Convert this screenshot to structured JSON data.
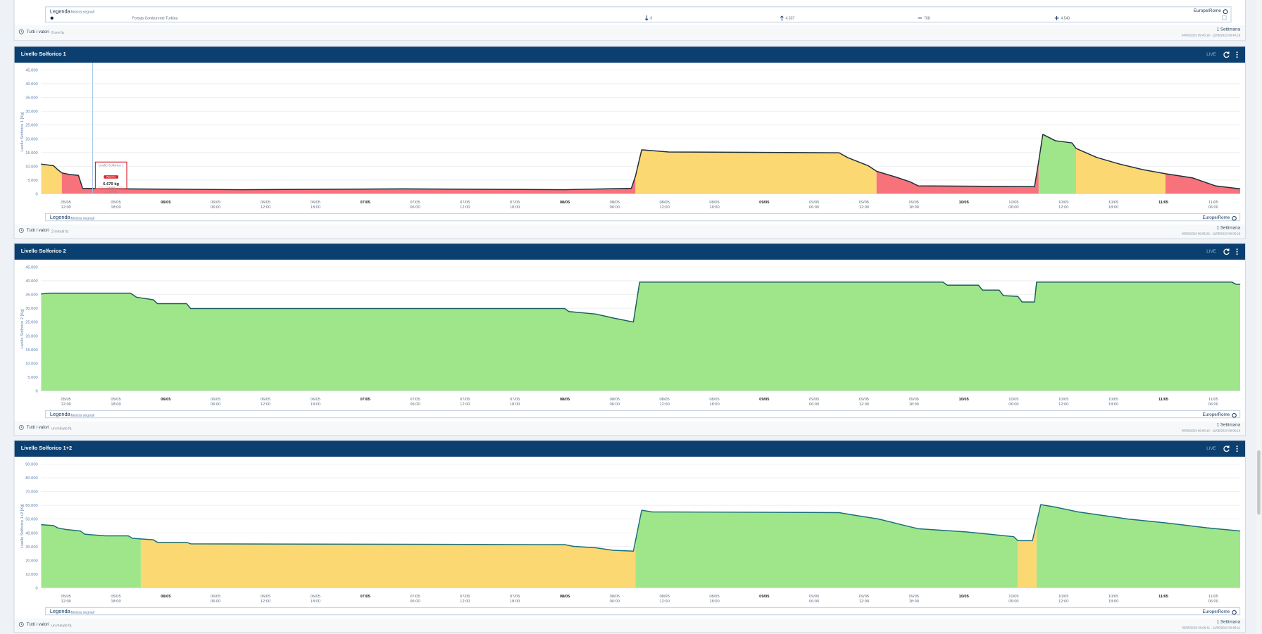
{
  "top_panel": {
    "legend": {
      "title": "Legenda",
      "toggle": "Mostra segnali",
      "timezone": "Europe/Rome"
    },
    "signal": {
      "name": "Portata Comburente Turbina",
      "min": "0",
      "max": "4.507",
      "avg": "708",
      "last": "4.540"
    },
    "footer": {
      "mode": "Tutti i valori",
      "updated": "6 ore fa",
      "range": "1 Settimana",
      "period": "04/05/2023 09:40:18 - 11/05/2023 09:40:18"
    }
  },
  "panels": [
    {
      "title": "Livello Solforico 1",
      "status": "LIVE",
      "legend": {
        "title": "Legenda",
        "toggle": "Mostra segnali",
        "timezone": "Europe/Rome"
      },
      "footer": {
        "mode": "Tutti i valori",
        "updated": "2 minuti fa",
        "range": "1 Settimana",
        "period": "05/05/2023 09:05:26 - 11/05/2023 09:05:26"
      },
      "tooltip": {
        "title": "Livello Solforico 1",
        "badge": "Allarme",
        "value": "6.679 kg",
        "date": "05/05",
        "time": "14:30:56"
      },
      "chart_data": {
        "type": "area",
        "y_label": "Livello Solforico 1 [Kg]",
        "line_color": "#1d2f3a",
        "grid": true,
        "x": [
          "2023-05-05 09:00",
          "2023-05-05 10:30",
          "2023-05-05 11:00",
          "2023-05-05 11:30",
          "2023-05-05 12:30",
          "2023-05-05 13:30",
          "2023-05-05 14:00",
          "2023-05-05 19:00",
          "2023-05-06 09:00",
          "2023-05-07 04:30",
          "2023-05-08 00:00",
          "2023-05-08 08:00",
          "2023-05-08 08:30",
          "2023-05-08 09:15",
          "2023-05-08 12:30",
          "2023-05-09 09:00",
          "2023-05-09 10:00",
          "2023-05-09 12:30",
          "2023-05-09 13:30",
          "2023-05-09 15:30",
          "2023-05-09 17:30",
          "2023-05-09 18:30",
          "2023-05-10 08:30",
          "2023-05-10 09:00",
          "2023-05-10 09:30",
          "2023-05-10 11:00",
          "2023-05-10 13:00",
          "2023-05-10 13:30",
          "2023-05-10 16:00",
          "2023-05-10 18:45",
          "2023-05-10 21:30",
          "2023-05-11 00:15",
          "2023-05-11 03:30",
          "2023-05-11 06:15",
          "2023-05-11 09:15"
        ],
        "values": [
          10800,
          10200,
          8800,
          7600,
          7000,
          6700,
          2000,
          1800,
          1500,
          1800,
          1500,
          2000,
          6400,
          16000,
          15200,
          14900,
          13200,
          10200,
          8200,
          6400,
          4400,
          2900,
          2600,
          11700,
          21600,
          19300,
          18500,
          16500,
          13200,
          10800,
          8800,
          7300,
          5800,
          2900,
          1800
        ],
        "bands": [
          {
            "from": "2023-05-05 09:00",
            "to": "2023-05-05 11:30",
            "color": "#fcd873"
          },
          {
            "from": "2023-05-05 11:30",
            "to": "2023-05-08 08:30",
            "color": "#f7727b"
          },
          {
            "from": "2023-05-08 08:30",
            "to": "2023-05-09 13:30",
            "color": "#fcd873"
          },
          {
            "from": "2023-05-09 13:30",
            "to": "2023-05-10 09:00",
            "color": "#f7727b"
          },
          {
            "from": "2023-05-10 09:00",
            "to": "2023-05-10 13:30",
            "color": "#9fe68b"
          },
          {
            "from": "2023-05-10 13:30",
            "to": "2023-05-11 00:15",
            "color": "#fcd873"
          },
          {
            "from": "2023-05-11 00:15",
            "to": "2023-05-11 09:15",
            "color": "#f7727b"
          }
        ],
        "xlim": [
          "2023-05-05 09:00",
          "2023-05-11 09:15"
        ],
        "xticks": [
          {
            "value": "2023-05-05 12:00",
            "label": "05/05 12:00"
          },
          {
            "value": "2023-05-05 18:00",
            "label": "05/05 18:00"
          },
          {
            "value": "2023-05-06 00:00",
            "label": "06/05"
          },
          {
            "value": "2023-05-06 06:00",
            "label": "06/05 06:00"
          },
          {
            "value": "2023-05-06 12:00",
            "label": "06/05 12:00"
          },
          {
            "value": "2023-05-06 18:00",
            "label": "06/05 18:00"
          },
          {
            "value": "2023-05-07 00:00",
            "label": "07/05"
          },
          {
            "value": "2023-05-07 06:00",
            "label": "07/05 06:00"
          },
          {
            "value": "2023-05-07 12:00",
            "label": "07/05 12:00"
          },
          {
            "value": "2023-05-07 18:00",
            "label": "07/05 18:00"
          },
          {
            "value": "2023-05-08 00:00",
            "label": "08/05"
          },
          {
            "value": "2023-05-08 06:00",
            "label": "08/05 06:00"
          },
          {
            "value": "2023-05-08 12:00",
            "label": "08/05 12:00"
          },
          {
            "value": "2023-05-08 18:00",
            "label": "08/05 18:00"
          },
          {
            "value": "2023-05-09 00:00",
            "label": "09/05"
          },
          {
            "value": "2023-05-09 06:00",
            "label": "09/05 06:00"
          },
          {
            "value": "2023-05-09 12:00",
            "label": "09/05 12:00"
          },
          {
            "value": "2023-05-09 18:00",
            "label": "09/05 18:00"
          },
          {
            "value": "2023-05-10 00:00",
            "label": "10/05"
          },
          {
            "value": "2023-05-10 06:00",
            "label": "10/05 06:00"
          },
          {
            "value": "2023-05-10 12:00",
            "label": "10/05 12:00"
          },
          {
            "value": "2023-05-10 18:00",
            "label": "10/05 18:00"
          },
          {
            "value": "2023-05-11 00:00",
            "label": "11/05"
          },
          {
            "value": "2023-05-11 06:00",
            "label": "11/05 06:00"
          }
        ],
        "ylim": [
          0,
          45000
        ],
        "yticks": [
          0,
          {
            "value": 5000,
            "label": "5.000"
          },
          {
            "value": 10000,
            "label": "10.000"
          },
          {
            "value": 15000,
            "label": "15.000"
          },
          {
            "value": 20000,
            "label": "20.000"
          },
          {
            "value": 25000,
            "label": "25.000"
          },
          {
            "value": 30000,
            "label": "30.000"
          },
          {
            "value": 35000,
            "label": "35.000"
          },
          {
            "value": 40000,
            "label": "40.000"
          },
          {
            "value": 45000,
            "label": "45.000"
          }
        ]
      }
    },
    {
      "title": "Livello Solforico 2",
      "status": "LIVE",
      "legend": {
        "title": "Legenda",
        "toggle": "Mostra segnali",
        "timezone": "Europe/Rome"
      },
      "footer": {
        "mode": "Tutti i valori",
        "updated": "un minuto fa",
        "range": "1 Settimana",
        "period": "05/05/2023 09:06:10 - 11/05/2023 09:06:10"
      },
      "chart_data": {
        "type": "area",
        "y_label": "Livello Solforico 2 [Kg]",
        "line_color": "#1b5e5c",
        "grid": true,
        "x": [
          "2023-05-05 09:00",
          "2023-05-05 10:00",
          "2023-05-05 19:45",
          "2023-05-05 20:30",
          "2023-05-05 22:30",
          "2023-05-05 23:00",
          "2023-05-06 02:30",
          "2023-05-06 03:00",
          "2023-05-08 00:00",
          "2023-05-08 00:30",
          "2023-05-08 03:45",
          "2023-05-08 05:45",
          "2023-05-08 08:15",
          "2023-05-08 09:00",
          "2023-05-09 21:30",
          "2023-05-09 22:00",
          "2023-05-10 01:45",
          "2023-05-10 02:15",
          "2023-05-10 04:15",
          "2023-05-10 04:45",
          "2023-05-10 06:30",
          "2023-05-10 07:00",
          "2023-05-10 08:30",
          "2023-05-10 08:45",
          "2023-05-11 08:15",
          "2023-05-11 08:45",
          "2023-05-11 09:15"
        ],
        "values": [
          35200,
          35500,
          35500,
          34000,
          33100,
          31700,
          31700,
          29900,
          29900,
          28800,
          27900,
          26500,
          25000,
          39500,
          39500,
          38400,
          38400,
          36600,
          36600,
          34600,
          34300,
          32300,
          32300,
          39500,
          39500,
          38700,
          38700
        ],
        "bands": [
          {
            "from": "2023-05-05 09:00",
            "to": "2023-05-11 09:15",
            "color": "#9fe68b"
          }
        ],
        "xlim": [
          "2023-05-05 09:00",
          "2023-05-11 09:15"
        ],
        "xticks": [
          {
            "value": "2023-05-05 12:00",
            "label": "05/05 12:00"
          },
          {
            "value": "2023-05-05 18:00",
            "label": "05/05 18:00"
          },
          {
            "value": "2023-05-06 00:00",
            "label": "06/05"
          },
          {
            "value": "2023-05-06 06:00",
            "label": "06/05 06:00"
          },
          {
            "value": "2023-05-06 12:00",
            "label": "06/05 12:00"
          },
          {
            "value": "2023-05-06 18:00",
            "label": "06/05 18:00"
          },
          {
            "value": "2023-05-07 00:00",
            "label": "07/05"
          },
          {
            "value": "2023-05-07 06:00",
            "label": "07/05 06:00"
          },
          {
            "value": "2023-05-07 12:00",
            "label": "07/05 12:00"
          },
          {
            "value": "2023-05-07 18:00",
            "label": "07/05 18:00"
          },
          {
            "value": "2023-05-08 00:00",
            "label": "08/05"
          },
          {
            "value": "2023-05-08 06:00",
            "label": "08/05 06:00"
          },
          {
            "value": "2023-05-08 12:00",
            "label": "08/05 12:00"
          },
          {
            "value": "2023-05-08 18:00",
            "label": "08/05 18:00"
          },
          {
            "value": "2023-05-09 00:00",
            "label": "09/05"
          },
          {
            "value": "2023-05-09 06:00",
            "label": "09/05 06:00"
          },
          {
            "value": "2023-05-09 12:00",
            "label": "09/05 12:00"
          },
          {
            "value": "2023-05-09 18:00",
            "label": "09/05 18:00"
          },
          {
            "value": "2023-05-10 00:00",
            "label": "10/05"
          },
          {
            "value": "2023-05-10 06:00",
            "label": "10/05 06:00"
          },
          {
            "value": "2023-05-10 12:00",
            "label": "10/05 12:00"
          },
          {
            "value": "2023-05-10 18:00",
            "label": "10/05 18:00"
          },
          {
            "value": "2023-05-11 00:00",
            "label": "11/05"
          },
          {
            "value": "2023-05-11 06:00",
            "label": "11/05 06:00"
          }
        ],
        "ylim": [
          0,
          45000
        ],
        "yticks": [
          0,
          {
            "value": 5000,
            "label": "5.000"
          },
          {
            "value": 10000,
            "label": "10.000"
          },
          {
            "value": 15000,
            "label": "15.000"
          },
          {
            "value": 20000,
            "label": "20.000"
          },
          {
            "value": 25000,
            "label": "25.000"
          },
          {
            "value": 30000,
            "label": "30.000"
          },
          {
            "value": 35000,
            "label": "35.000"
          },
          {
            "value": 40000,
            "label": "40.000"
          },
          {
            "value": 45000,
            "label": "45.000"
          }
        ]
      }
    },
    {
      "title": "Livello Solforico 1+2",
      "status": "LIVE",
      "legend": {
        "title": "Legenda",
        "toggle": "Mostra segnali",
        "timezone": "Europe/Rome"
      },
      "footer": {
        "mode": "Tutti i valori",
        "updated": "un minuto fa",
        "range": "1 Settimana",
        "period": "05/05/2023 09:06:11 - 11/05/2023 09:06:11"
      },
      "chart_data": {
        "type": "area",
        "y_label": "Livello Solforico 1+2 [Kg]",
        "line_color": "#1b6f7a",
        "grid": true,
        "x": [
          "2023-05-05 09:00",
          "2023-05-05 10:30",
          "2023-05-05 11:00",
          "2023-05-05 12:00",
          "2023-05-05 13:45",
          "2023-05-05 14:15",
          "2023-05-05 16:45",
          "2023-05-05 19:30",
          "2023-05-05 20:00",
          "2023-05-05 22:30",
          "2023-05-05 23:00",
          "2023-05-06 02:30",
          "2023-05-06 03:00",
          "2023-05-08 00:00",
          "2023-05-08 01:00",
          "2023-05-08 03:45",
          "2023-05-08 05:45",
          "2023-05-08 08:15",
          "2023-05-08 09:15",
          "2023-05-08 10:30",
          "2023-05-09 09:00",
          "2023-05-09 10:45",
          "2023-05-09 13:45",
          "2023-05-09 16:30",
          "2023-05-09 18:30",
          "2023-05-10 00:15",
          "2023-05-10 06:00",
          "2023-05-10 06:30",
          "2023-05-10 08:15",
          "2023-05-10 09:15",
          "2023-05-10 11:00",
          "2023-05-10 13:45",
          "2023-05-10 19:45",
          "2023-05-11 00:30",
          "2023-05-11 05:15",
          "2023-05-11 09:15"
        ],
        "values": [
          45900,
          45300,
          43600,
          42400,
          41300,
          39000,
          37800,
          37800,
          36000,
          34900,
          33100,
          33100,
          32000,
          31400,
          30200,
          29100,
          27300,
          26700,
          56400,
          55200,
          54700,
          52900,
          50000,
          45900,
          43000,
          40700,
          37200,
          34300,
          34300,
          60500,
          58700,
          55200,
          50000,
          47100,
          43600,
          41300
        ],
        "bands": [
          {
            "from": "2023-05-05 09:00",
            "to": "2023-05-05 21:00",
            "color": "#9fe68b"
          },
          {
            "from": "2023-05-05 21:00",
            "to": "2023-05-08 08:30",
            "color": "#fcd873"
          },
          {
            "from": "2023-05-08 08:30",
            "to": "2023-05-10 06:30",
            "color": "#9fe68b"
          },
          {
            "from": "2023-05-10 06:30",
            "to": "2023-05-10 08:45",
            "color": "#fcd873"
          },
          {
            "from": "2023-05-10 08:45",
            "to": "2023-05-11 09:15",
            "color": "#9fe68b"
          }
        ],
        "xlim": [
          "2023-05-05 09:00",
          "2023-05-11 09:15"
        ],
        "xticks": [
          {
            "value": "2023-05-05 12:00",
            "label": "05/05 12:00"
          },
          {
            "value": "2023-05-05 18:00",
            "label": "05/05 18:00"
          },
          {
            "value": "2023-05-06 00:00",
            "label": "06/05"
          },
          {
            "value": "2023-05-06 06:00",
            "label": "06/05 06:00"
          },
          {
            "value": "2023-05-06 12:00",
            "label": "06/05 12:00"
          },
          {
            "value": "2023-05-06 18:00",
            "label": "06/05 18:00"
          },
          {
            "value": "2023-05-07 00:00",
            "label": "07/05"
          },
          {
            "value": "2023-05-07 06:00",
            "label": "07/05 06:00"
          },
          {
            "value": "2023-05-07 12:00",
            "label": "07/05 12:00"
          },
          {
            "value": "2023-05-07 18:00",
            "label": "07/05 18:00"
          },
          {
            "value": "2023-05-08 00:00",
            "label": "08/05"
          },
          {
            "value": "2023-05-08 06:00",
            "label": "08/05 06:00"
          },
          {
            "value": "2023-05-08 12:00",
            "label": "08/05 12:00"
          },
          {
            "value": "2023-05-08 18:00",
            "label": "08/05 18:00"
          },
          {
            "value": "2023-05-09 00:00",
            "label": "09/05"
          },
          {
            "value": "2023-05-09 06:00",
            "label": "09/05 06:00"
          },
          {
            "value": "2023-05-09 12:00",
            "label": "09/05 12:00"
          },
          {
            "value": "2023-05-09 18:00",
            "label": "09/05 18:00"
          },
          {
            "value": "2023-05-10 00:00",
            "label": "10/05"
          },
          {
            "value": "2023-05-10 06:00",
            "label": "10/05 06:00"
          },
          {
            "value": "2023-05-10 12:00",
            "label": "10/05 12:00"
          },
          {
            "value": "2023-05-10 18:00",
            "label": "10/05 18:00"
          },
          {
            "value": "2023-05-11 00:00",
            "label": "11/05"
          },
          {
            "value": "2023-05-11 06:00",
            "label": "11/05 06:00"
          }
        ],
        "ylim": [
          0,
          90000
        ],
        "yticks": [
          0,
          {
            "value": 10000,
            "label": "10.000"
          },
          {
            "value": 20000,
            "label": "20.000"
          },
          {
            "value": 30000,
            "label": "30.000"
          },
          {
            "value": 40000,
            "label": "40.000"
          },
          {
            "value": 50000,
            "label": "50.000"
          },
          {
            "value": 60000,
            "label": "60.000"
          },
          {
            "value": 70000,
            "label": "70.000"
          },
          {
            "value": 80000,
            "label": "80.000"
          },
          {
            "value": 90000,
            "label": "90.000"
          }
        ]
      }
    }
  ]
}
